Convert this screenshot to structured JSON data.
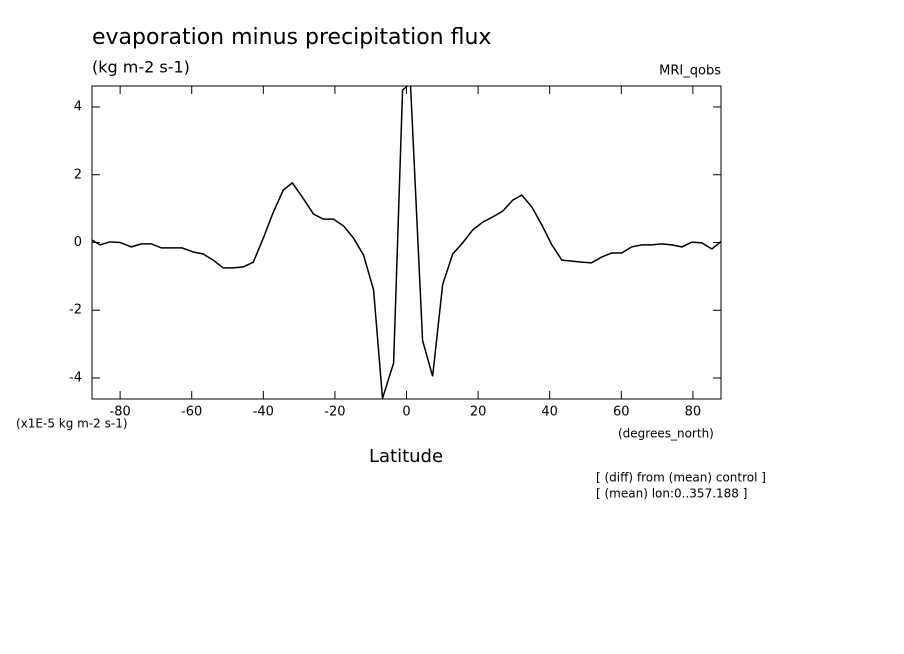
{
  "chart_data": {
    "type": "line",
    "title": "evaporation minus precipitation flux",
    "subtitle": "(kg m-2 s-1)",
    "dataset_label": "MRI_qobs",
    "y_axis_label": "(x1E-5 kg m-2 s-1)",
    "x_units_label": "(degrees_north)",
    "x_axis_label": "Latitude",
    "notes": [
      "[ (diff) from (mean) control ]",
      "[ (mean) lon:0..357.188 ]"
    ],
    "x": [
      -87.8,
      -85.6,
      -82.8,
      -80,
      -76.9,
      -74.1,
      -71.3,
      -68.5,
      -65.5,
      -62.7,
      -59.6,
      -56.8,
      -54,
      -51.2,
      -48.4,
      -45.6,
      -42.8,
      -40,
      -37.2,
      -34.4,
      -31.9,
      -29.1,
      -26,
      -23.2,
      -20.4,
      -17.6,
      -14.8,
      -12,
      -9.2,
      -6.7,
      -3.6,
      -1.1,
      1.1,
      4.5,
      7.3,
      10.1,
      12.9,
      15.7,
      18.5,
      21.3,
      24,
      26.9,
      29.7,
      32.2,
      35,
      37.8,
      40.6,
      43.4,
      46.2,
      48.9,
      51.7,
      54.5,
      57.3,
      60.1,
      62.9,
      65.7,
      68.5,
      71.3,
      74.1,
      76.9,
      79.7,
      82.5,
      85.3,
      88
    ],
    "series": [
      {
        "color": "#000000",
        "values": [
          0.07,
          -0.07,
          0.02,
          0,
          -0.13,
          -0.04,
          -0.04,
          -0.16,
          -0.16,
          -0.16,
          -0.28,
          -0.34,
          -0.52,
          -0.75,
          -0.75,
          -0.72,
          -0.58,
          0.13,
          0.9,
          1.55,
          1.76,
          1.34,
          0.84,
          0.69,
          0.69,
          0.49,
          0.13,
          -0.37,
          -1.4,
          -4.6,
          -3.56,
          4.5,
          4.7,
          -2.9,
          -3.95,
          -1.24,
          -0.34,
          -0.01,
          0.37,
          0.6,
          0.75,
          0.93,
          1.25,
          1.4,
          1.05,
          0.52,
          -0.07,
          -0.52,
          -0.55,
          -0.58,
          -0.6,
          -0.43,
          -0.31,
          -0.31,
          -0.13,
          -0.07,
          -0.07,
          -0.04,
          -0.07,
          -0.13,
          0.01,
          -0.01,
          -0.19,
          0.04
        ]
      }
    ],
    "xlim": [
      -87.86,
      87.86
    ],
    "xticks": [
      -80,
      -60,
      -40,
      -20,
      0,
      20,
      40,
      60,
      80
    ],
    "ylim": [
      -4.62,
      4.62
    ],
    "yticks": [
      -4,
      -2,
      0,
      2,
      4
    ]
  }
}
